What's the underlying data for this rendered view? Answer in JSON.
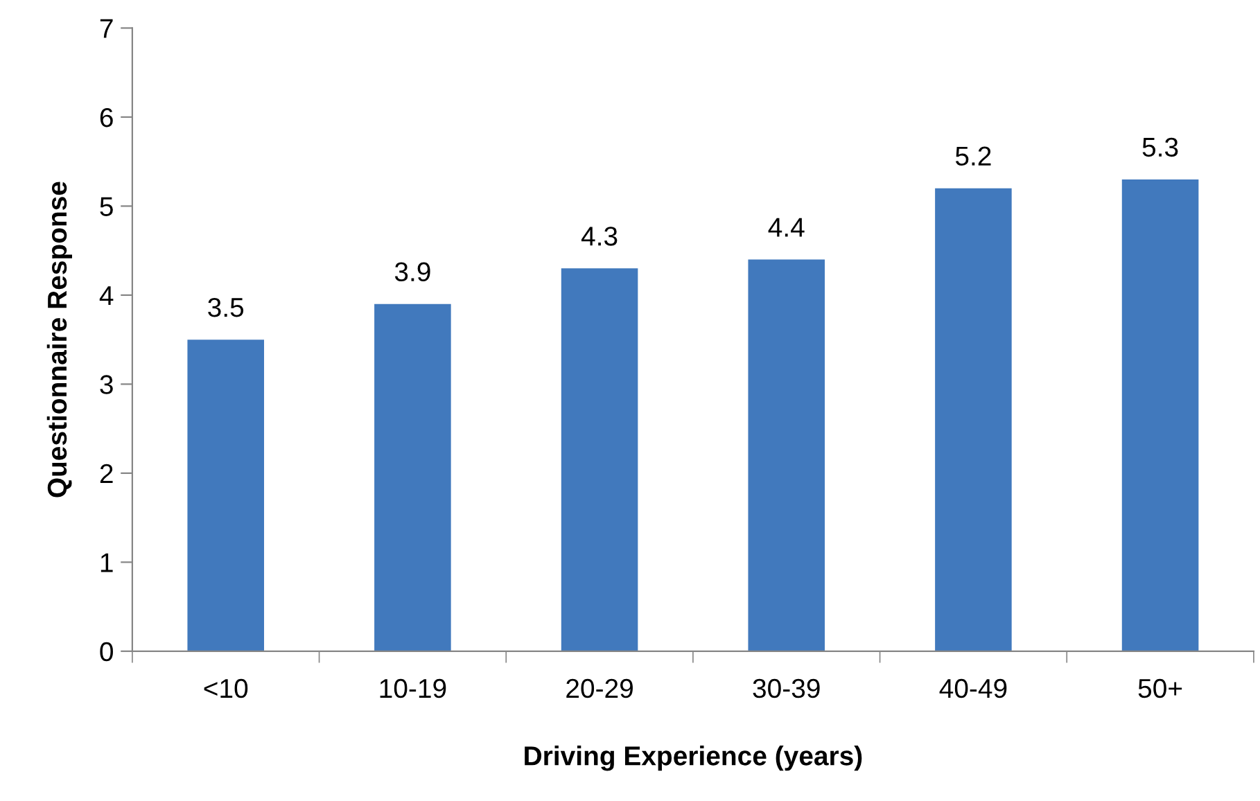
{
  "chart_data": {
    "type": "bar",
    "xlabel": "Driving Experience (years)",
    "ylabel": "Questionnaire Response",
    "categories": [
      "<10",
      "10-19",
      "20-29",
      "30-39",
      "40-49",
      "50+"
    ],
    "values": [
      3.5,
      3.9,
      4.3,
      4.4,
      5.2,
      5.3
    ],
    "color": "#4179bd",
    "ylim": [
      0,
      7
    ],
    "yticks": [
      0,
      1,
      2,
      3,
      4,
      5,
      6,
      7
    ],
    "data_labels": true,
    "grid": false,
    "legend": false
  }
}
